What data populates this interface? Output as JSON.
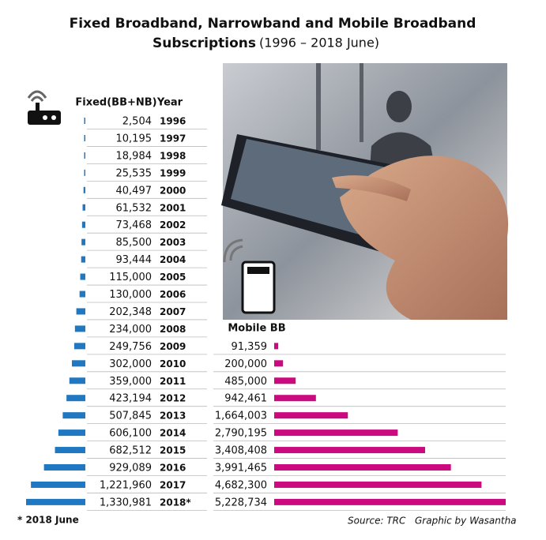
{
  "chart_data": {
    "type": "bar",
    "orientation": "horizontal",
    "title_lines": [
      "Fixed Broadband, Narrowband and Mobile Broadband",
      "Subscriptions"
    ],
    "subtitle": "(1996 – 2018 June)",
    "category_header": "Year",
    "categories": [
      "1996",
      "1997",
      "1998",
      "1999",
      "2000",
      "2001",
      "2002",
      "2003",
      "2004",
      "2005",
      "2006",
      "2007",
      "2008",
      "2009",
      "2010",
      "2011",
      "2012",
      "2013",
      "2014",
      "2015",
      "2016",
      "2017",
      "2018*"
    ],
    "series": [
      {
        "name": "Fixed(BB+NB)",
        "color": "#1f78c1",
        "values": [
          2504,
          10195,
          18984,
          25535,
          40497,
          61532,
          73468,
          85500,
          93444,
          115000,
          130000,
          202348,
          234000,
          249756,
          302000,
          359000,
          423194,
          507845,
          606100,
          682512,
          929089,
          1221960,
          1330981
        ],
        "value_labels": [
          "2,504",
          "10,195",
          "18,984",
          "25,535",
          "40,497",
          "61,532",
          "73,468",
          "85,500",
          "93,444",
          "115,000",
          "130,000",
          "202,348",
          "234,000",
          "249,756",
          "302,000",
          "359,000",
          "423,194",
          "507,845",
          "606,100",
          "682,512",
          "929,089",
          "1,221,960",
          "1,330,981"
        ]
      },
      {
        "name": "Mobile BB",
        "color": "#cc0a7f",
        "values": [
          null,
          null,
          null,
          null,
          null,
          null,
          null,
          null,
          null,
          null,
          null,
          null,
          null,
          91359,
          200000,
          485000,
          942461,
          1664003,
          2790195,
          3408408,
          3991465,
          4682300,
          5228734
        ],
        "value_labels": [
          null,
          null,
          null,
          null,
          null,
          null,
          null,
          null,
          null,
          null,
          null,
          null,
          null,
          "91,359",
          "200,000",
          "485,000",
          "942,461",
          "1,664,003",
          "2,790,195",
          "3,408,408",
          "3,991,465",
          "4,682,300",
          "5,228,734"
        ]
      }
    ],
    "footnote": "*  2018 June",
    "source": "Source: TRC",
    "credit": "Graphic by Wasantha"
  }
}
